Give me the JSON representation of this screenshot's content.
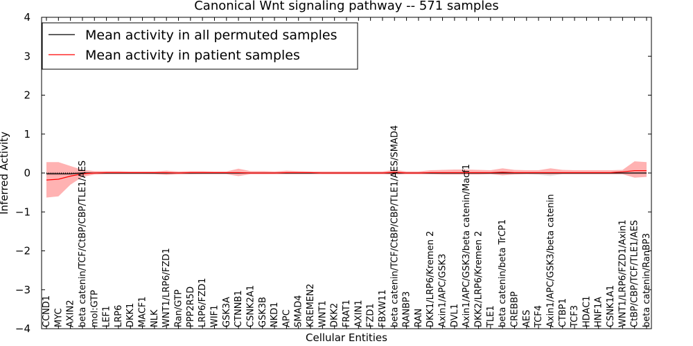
{
  "chart_data": {
    "type": "line",
    "title": "Canonical Wnt signaling pathway -- 571 samples",
    "xlabel": "Cellular Entities",
    "ylabel": "Inferred Activity",
    "ylim": [
      -4,
      4
    ],
    "yticks": [
      "4",
      "3",
      "2",
      "1",
      "0",
      "−1",
      "−2",
      "−3",
      "−4"
    ],
    "ytick_values": [
      4,
      3,
      2,
      1,
      0,
      -1,
      -2,
      -3,
      -4
    ],
    "grid": false,
    "legend_position": "top-left",
    "categories": [
      "CCND1",
      "MYC",
      "AXIN2",
      "beta catenin/TCF/CtBP/CBP/TLE1/AES",
      "mol:GTP",
      "LEF1",
      "LRP6",
      "DKK1",
      "MACF1",
      "NLK",
      "WNT1/LRP6/FZD1",
      "Ran/GTP",
      "PPP2R5D",
      "LRP6/FZD1",
      "WIF1",
      "GSK3A",
      "CTNNB1",
      "CSNK2A1",
      "GSK3B",
      "NKD1",
      "APC",
      "SMAD4",
      "KREMEN2",
      "WNT1",
      "DKK2",
      "FRAT1",
      "AXIN1",
      "FZD1",
      "FBXW11",
      "beta catenin/TCF/CtBP/CBP/TLE1/AES/SMAD4",
      "RANBP3",
      "RAN",
      "DKK1/LRP6/Kremen 2",
      "Axin1/APC/GSK3",
      "DVL1",
      "Axin1/APC/GSK3/beta catenin/Macf1",
      "DKK2/LRP6/Kremen 2",
      "TLE1",
      "beta catenin/beta TrCP1",
      "CREBBP",
      "AES",
      "TCF4",
      "Axin1/APC/GSK3/beta catenin",
      "CTBP1",
      "TCF3",
      "HDAC1",
      "HNF1A",
      "CSNK1A1",
      "WNT1/LRP6/FZD1/Axin1",
      "CtBP/CBP/TCF/TLE1/AES",
      "beta catenin/RanBP3"
    ],
    "series": [
      {
        "name": "Mean activity in all permuted samples",
        "color": "#000000",
        "values": [
          -0.02,
          -0.02,
          -0.02,
          0.0,
          0.0,
          0.0,
          0.0,
          0.0,
          0.0,
          0.0,
          0.0,
          0.0,
          0.0,
          0.0,
          0.0,
          0.0,
          0.0,
          0.0,
          0.0,
          0.0,
          0.0,
          0.0,
          0.0,
          0.0,
          0.0,
          0.0,
          0.0,
          0.0,
          0.0,
          0.0,
          0.0,
          0.0,
          0.0,
          0.0,
          0.0,
          0.0,
          0.0,
          0.0,
          0.0,
          0.0,
          0.0,
          0.0,
          0.0,
          0.0,
          0.0,
          0.0,
          0.0,
          0.0,
          0.0,
          0.0,
          0.0
        ],
        "band_upper": [
          0.02,
          0.02,
          0.02,
          0.02,
          0.02,
          0.02,
          0.02,
          0.02,
          0.02,
          0.02,
          0.02,
          0.02,
          0.02,
          0.02,
          0.02,
          0.02,
          0.02,
          0.02,
          0.02,
          0.02,
          0.02,
          0.02,
          0.02,
          0.02,
          0.02,
          0.02,
          0.02,
          0.02,
          0.02,
          0.02,
          0.02,
          0.02,
          0.02,
          0.02,
          0.02,
          0.02,
          0.02,
          0.02,
          0.02,
          0.02,
          0.02,
          0.02,
          0.02,
          0.02,
          0.02,
          0.02,
          0.02,
          0.02,
          0.02,
          0.02,
          0.02
        ],
        "band_lower": [
          -0.06,
          -0.06,
          -0.05,
          -0.03,
          -0.02,
          -0.02,
          -0.02,
          -0.02,
          -0.02,
          -0.03,
          -0.03,
          -0.03,
          -0.03,
          -0.02,
          -0.02,
          -0.02,
          -0.02,
          -0.02,
          -0.02,
          -0.02,
          -0.02,
          -0.02,
          -0.02,
          -0.02,
          -0.02,
          -0.02,
          -0.02,
          -0.02,
          -0.02,
          -0.02,
          -0.02,
          -0.02,
          -0.03,
          -0.03,
          -0.03,
          -0.03,
          -0.03,
          -0.03,
          -0.03,
          -0.03,
          -0.03,
          -0.05,
          -0.08,
          -0.03,
          -0.03,
          -0.03,
          -0.03,
          -0.03,
          -0.03,
          -0.03,
          -0.03
        ]
      },
      {
        "name": "Mean activity in patient samples",
        "color": "#ff0000",
        "values": [
          -0.18,
          -0.16,
          -0.08,
          -0.02,
          0.0,
          0.01,
          0.01,
          0.01,
          0.01,
          0.01,
          0.01,
          0.0,
          0.01,
          0.01,
          0.01,
          0.01,
          0.01,
          0.0,
          0.0,
          0.0,
          0.01,
          0.01,
          0.01,
          0.0,
          0.0,
          0.0,
          0.0,
          0.0,
          0.0,
          0.02,
          0.0,
          0.0,
          0.01,
          0.01,
          0.01,
          0.01,
          0.01,
          0.01,
          0.02,
          0.01,
          0.01,
          0.01,
          0.01,
          0.01,
          0.01,
          0.01,
          0.01,
          0.01,
          0.03,
          0.06,
          0.06
        ],
        "band_upper": [
          0.28,
          0.28,
          0.18,
          0.08,
          0.05,
          0.05,
          0.05,
          0.04,
          0.04,
          0.04,
          0.06,
          0.04,
          0.05,
          0.05,
          0.04,
          0.04,
          0.11,
          0.05,
          0.05,
          0.04,
          0.06,
          0.05,
          0.04,
          0.04,
          0.04,
          0.04,
          0.04,
          0.04,
          0.04,
          0.08,
          0.04,
          0.04,
          0.07,
          0.08,
          0.09,
          0.09,
          0.08,
          0.07,
          0.12,
          0.08,
          0.07,
          0.07,
          0.12,
          0.08,
          0.07,
          0.07,
          0.07,
          0.07,
          0.08,
          0.3,
          0.28
        ],
        "band_lower": [
          -0.63,
          -0.6,
          -0.3,
          -0.1,
          -0.04,
          -0.03,
          -0.03,
          -0.03,
          -0.03,
          -0.03,
          -0.05,
          -0.03,
          -0.03,
          -0.03,
          -0.03,
          -0.03,
          -0.08,
          -0.03,
          -0.03,
          -0.03,
          -0.03,
          -0.03,
          -0.03,
          -0.03,
          -0.03,
          -0.03,
          -0.03,
          -0.03,
          -0.03,
          -0.04,
          -0.03,
          -0.03,
          -0.03,
          -0.04,
          -0.04,
          -0.04,
          -0.04,
          -0.03,
          -0.06,
          -0.04,
          -0.03,
          -0.03,
          -0.04,
          -0.03,
          -0.03,
          -0.03,
          -0.03,
          -0.03,
          -0.03,
          -0.12,
          -0.1
        ]
      }
    ]
  }
}
